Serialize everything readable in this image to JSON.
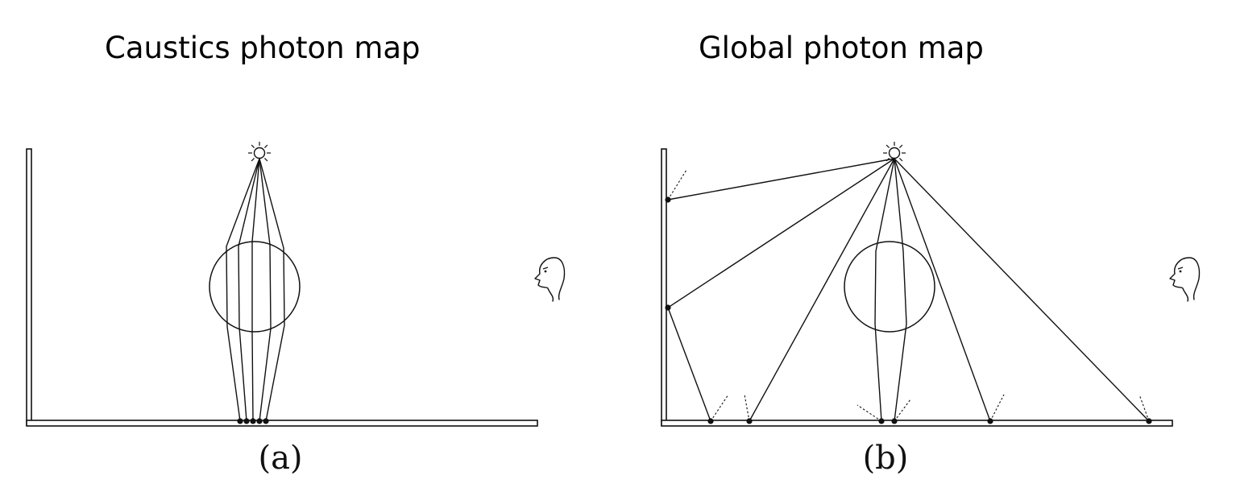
{
  "panels": [
    {
      "id": "a",
      "title": "Caustics photon map",
      "caption": "(a)"
    },
    {
      "id": "b",
      "title": "Global photon map",
      "caption": "(b)"
    }
  ],
  "colors": {
    "ink": "#111111",
    "background": "#ffffff"
  },
  "icons": [
    "light-source-icon",
    "eye-viewer-icon"
  ]
}
